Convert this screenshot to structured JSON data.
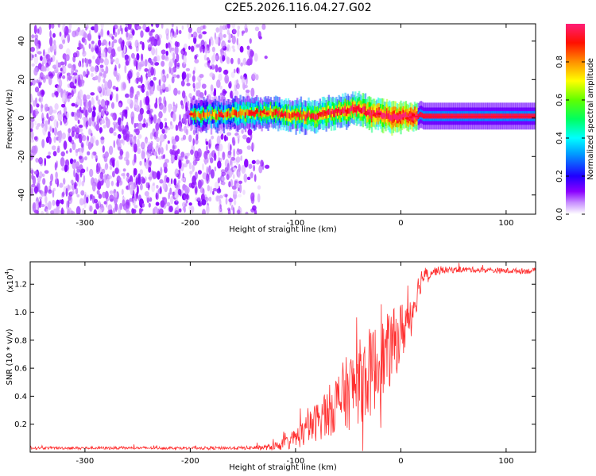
{
  "page_title": "C2E5.2026.116.04.27.G02",
  "chart_data": [
    {
      "type": "heatmap",
      "xlabel": "Height of straight line (km)",
      "ylabel": "Frequency (Hz)",
      "xlim": [
        -352,
        128
      ],
      "ylim": [
        -50,
        49
      ],
      "xticks": [
        -300,
        -200,
        -100,
        0,
        100
      ],
      "yticks": [
        -40,
        -20,
        0,
        20,
        40
      ],
      "colorbar": {
        "label": "Normalized spectral amplitude",
        "range": [
          0,
          1
        ],
        "ticks": [
          0,
          0.2,
          0.4,
          0.6,
          0.8
        ],
        "tick_labels": [
          "0.0",
          "0.2",
          "0.4",
          "0.6",
          "0.8"
        ],
        "colormap": [
          "#ffffff",
          "#8a00ff",
          "#0000ff",
          "#00ffff",
          "#00ff00",
          "#ffff00",
          "#ff8000",
          "#ff0000",
          "#ff1e78"
        ]
      },
      "noise_region_x": [
        -352,
        -125
      ],
      "signal_track": {
        "x": [
          -200,
          -180,
          -160,
          -140,
          -120,
          -100,
          -80,
          -60,
          -40,
          -30,
          -20,
          -10,
          0,
          10,
          50,
          100,
          128
        ],
        "freq": [
          2,
          1.5,
          2,
          2.5,
          3,
          1,
          1.5,
          3,
          5,
          2,
          2,
          1,
          1,
          1,
          1,
          1,
          1
        ],
        "amplitude": [
          0.25,
          0.3,
          0.35,
          0.4,
          0.45,
          0.5,
          0.55,
          0.6,
          0.7,
          0.75,
          0.8,
          0.85,
          0.9,
          0.92,
          0.95,
          0.95,
          0.95
        ]
      }
    },
    {
      "type": "line",
      "title": "",
      "xlabel": "Height of straight line (km)",
      "ylabel": "SNR (10 * v/v)",
      "y_multiplier": "(x10",
      "y_multiplier_exp": "4",
      "xlim": [
        -352,
        128
      ],
      "ylim": [
        0,
        13600
      ],
      "xticks": [
        -300,
        -200,
        -100,
        0,
        100
      ],
      "yticks": [
        2000,
        4000,
        6000,
        8000,
        10000,
        12000
      ],
      "ytick_labels": [
        "0.2",
        "0.4",
        "0.6",
        "0.8",
        "1.0",
        "1.2"
      ],
      "color": "#ff3030",
      "series": [
        {
          "x": [
            -352,
            -300,
            -250,
            -200,
            -150,
            -125,
            -110,
            -100,
            -90,
            -80,
            -70,
            -60,
            -50,
            -40,
            -30,
            -20,
            -10,
            0,
            10,
            20,
            30,
            40,
            60,
            80,
            100,
            128
          ],
          "base": [
            300,
            300,
            300,
            300,
            300,
            350,
            600,
            1000,
            1500,
            2200,
            2800,
            3600,
            4300,
            5000,
            5600,
            6400,
            7300,
            8500,
            10000,
            12500,
            12900,
            13000,
            13050,
            13000,
            12950,
            12950
          ],
          "spread": [
            200,
            200,
            200,
            200,
            250,
            400,
            900,
            1500,
            2200,
            2800,
            3500,
            4500,
            5500,
            6000,
            6500,
            6000,
            5500,
            4500,
            3500,
            1500,
            700,
            500,
            400,
            400,
            400,
            400
          ]
        }
      ]
    }
  ]
}
